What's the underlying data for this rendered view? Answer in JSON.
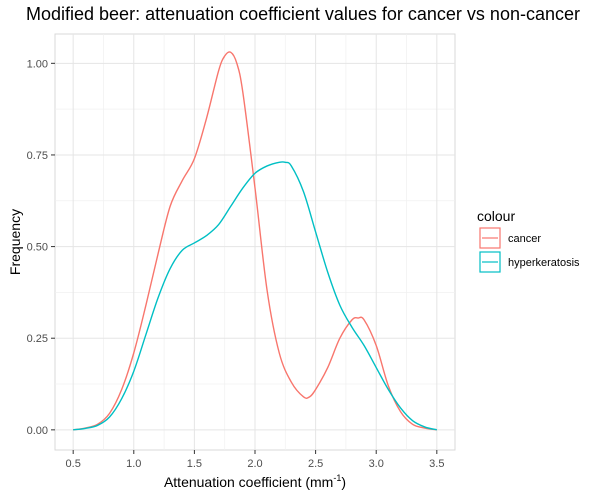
{
  "chart_data": {
    "type": "line",
    "title": "Modified beer: attenuation coefficient values for cancer vs non-cancer",
    "xlabel": "Attenuation coefficient (mm",
    "xlabel_superscript": "-1",
    "xlabel_suffix": ")",
    "ylabel": "Frequency",
    "xlim": [
      0.5,
      3.5
    ],
    "ylim": [
      0,
      1.0
    ],
    "x_ticks": [
      "0.5",
      "1.0",
      "1.5",
      "2.0",
      "2.5",
      "3.0",
      "3.5"
    ],
    "y_ticks": [
      "0.00",
      "0.25",
      "0.50",
      "0.75",
      "1.00"
    ],
    "grid": true,
    "legend": {
      "title": "colour",
      "placement": "right"
    },
    "series": [
      {
        "name": "cancer",
        "color": "#F8766D",
        "x": [
          0.5,
          0.6,
          0.7,
          0.8,
          0.9,
          1.0,
          1.1,
          1.2,
          1.3,
          1.4,
          1.5,
          1.6,
          1.7,
          1.75,
          1.8,
          1.85,
          1.9,
          2.0,
          2.1,
          2.2,
          2.3,
          2.4,
          2.45,
          2.5,
          2.6,
          2.7,
          2.8,
          2.85,
          2.9,
          3.0,
          3.1,
          3.2,
          3.3,
          3.4,
          3.5
        ],
        "y": [
          0.0,
          0.005,
          0.015,
          0.045,
          0.11,
          0.21,
          0.34,
          0.48,
          0.61,
          0.68,
          0.74,
          0.85,
          0.98,
          1.02,
          1.03,
          1.0,
          0.92,
          0.66,
          0.38,
          0.21,
          0.13,
          0.09,
          0.09,
          0.11,
          0.17,
          0.25,
          0.3,
          0.305,
          0.3,
          0.23,
          0.12,
          0.05,
          0.015,
          0.005,
          0.0
        ]
      },
      {
        "name": "hyperkeratosis",
        "color": "#00BFC4",
        "x": [
          0.5,
          0.6,
          0.7,
          0.8,
          0.9,
          1.0,
          1.1,
          1.2,
          1.3,
          1.4,
          1.5,
          1.6,
          1.7,
          1.8,
          1.9,
          2.0,
          2.1,
          2.2,
          2.25,
          2.3,
          2.4,
          2.5,
          2.6,
          2.7,
          2.8,
          2.9,
          3.0,
          3.1,
          3.2,
          3.3,
          3.4,
          3.5
        ],
        "y": [
          0.0,
          0.004,
          0.012,
          0.035,
          0.085,
          0.16,
          0.26,
          0.36,
          0.44,
          0.49,
          0.51,
          0.53,
          0.56,
          0.61,
          0.66,
          0.7,
          0.72,
          0.73,
          0.73,
          0.72,
          0.65,
          0.54,
          0.43,
          0.34,
          0.28,
          0.23,
          0.17,
          0.11,
          0.06,
          0.025,
          0.008,
          0.0
        ]
      }
    ]
  }
}
